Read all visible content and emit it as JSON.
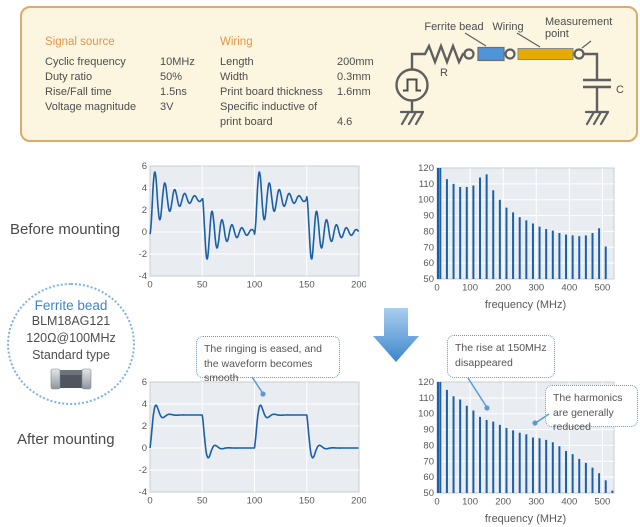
{
  "conditions_panel": {
    "signal_source": {
      "heading": "Signal source",
      "rows": [
        {
          "label": "Cyclic frequency",
          "value": "10MHz"
        },
        {
          "label": "Duty ratio",
          "value": "50%"
        },
        {
          "label": "Rise/Fall time",
          "value": "1.5ns"
        },
        {
          "label": "Voltage magnitude",
          "value": "3V"
        }
      ]
    },
    "wiring": {
      "heading": "Wiring",
      "rows": [
        {
          "label": "Length",
          "value": "200mm"
        },
        {
          "label": "Width",
          "value": "0.3mm"
        },
        {
          "label": "Print board thickness",
          "value": "1.6mm"
        },
        {
          "label": "Specific inductive of print board",
          "value": "4.6"
        }
      ]
    },
    "circuit": {
      "labels": {
        "ferrite_bead": "Ferrite bead",
        "wiring": "Wiring",
        "measurement_line1": "Measurement",
        "measurement_line2": "point",
        "resistor": "R",
        "capacitor": "C"
      }
    }
  },
  "sections": {
    "before_label": "Before mounting",
    "after_label": "After mounting"
  },
  "ferrite_bead_badge": {
    "title": "Ferrite bead",
    "part_number": "BLM18AG121",
    "impedance": "120Ω@100MHz",
    "type": "Standard type"
  },
  "callouts": {
    "waveform": "The ringing is eased, and the waveform becomes smooth",
    "spectrum_rise": "The rise at 150MHz disappeared",
    "spectrum_harmonics": "The harmonics are generally reduced"
  },
  "colors": {
    "series": "#1a5fa8",
    "plot_bg": "#e9edf1",
    "plot_border": "#c8cdd4",
    "grid": "#ffffff",
    "tick_text": "#595959",
    "panel_bg": "#fcf5df",
    "panel_border": "#dca96e",
    "heading_orange": "#e2964a",
    "callout_blue": "#5b9bd5",
    "badge_blue": "#3f84cc",
    "bead_fill": "#4e94d8",
    "wiring_fill": "#e5ab00",
    "arrow_light": "#aacef0",
    "arrow_dark": "#3e86cc"
  },
  "chart_data": [
    {
      "type": "line",
      "name": "before_mounting_waveform",
      "description": "10MHz square wave (0-3V) with strong ringing: overshoot to ~5.5 and undershoot to ~-2.5, slowly damped oscillation",
      "xlim": [
        0,
        200
      ],
      "ylim": [
        -4,
        6
      ],
      "xticks": [
        0,
        50,
        100,
        150,
        200
      ],
      "yticks": [
        -4,
        -2,
        0,
        2,
        4,
        6
      ],
      "xlabel": "",
      "ylabel": "",
      "waveform_model": {
        "period_ns": 100,
        "duty_pct": 50,
        "high_level": 3,
        "low_level": 0,
        "ring_amplitude": 3.2,
        "ring_decay_ns": 18,
        "ring_period_ns": 9.5
      }
    },
    {
      "type": "bar",
      "name": "before_mounting_spectrum",
      "xlabel": "frequency (MHz)",
      "xlim": [
        0,
        535
      ],
      "ylim": [
        50,
        120
      ],
      "xticks": [
        0,
        100,
        200,
        300,
        400,
        500
      ],
      "yticks": [
        50,
        60,
        70,
        80,
        90,
        100,
        110,
        120
      ],
      "frequencies": [
        10,
        30,
        50,
        70,
        90,
        110,
        130,
        150,
        170,
        190,
        210,
        230,
        250,
        270,
        290,
        310,
        330,
        350,
        370,
        390,
        410,
        430,
        450,
        470,
        490,
        510
      ],
      "values": [
        120,
        113,
        110,
        108,
        108,
        109,
        114,
        116,
        106,
        100,
        95,
        92,
        89,
        87,
        85,
        83,
        81.5,
        80.5,
        79,
        78,
        77.5,
        77,
        77.5,
        79,
        82,
        70.5
      ]
    },
    {
      "type": "line",
      "name": "after_mounting_waveform",
      "description": "Smoothed 10MHz square wave (0-3V): single small overshoot to ~4 and undershoot to ~-1, ringing eased",
      "xlim": [
        0,
        200
      ],
      "ylim": [
        -4,
        6
      ],
      "xticks": [
        0,
        50,
        100,
        150,
        200
      ],
      "yticks": [
        -4,
        -2,
        0,
        2,
        4,
        6
      ],
      "xlabel": "",
      "ylabel": "",
      "waveform_model": {
        "period_ns": 100,
        "duty_pct": 50,
        "high_level": 3,
        "low_level": 0,
        "ring_amplitude": 3.0,
        "ring_decay_ns": 5,
        "ring_period_ns": 13
      }
    },
    {
      "type": "bar",
      "name": "after_mounting_spectrum",
      "xlabel": "frequency (MHz)",
      "xlim": [
        0,
        535
      ],
      "ylim": [
        50,
        120
      ],
      "xticks": [
        0,
        100,
        200,
        300,
        400,
        500
      ],
      "yticks": [
        50,
        60,
        70,
        80,
        90,
        100,
        110,
        120
      ],
      "frequencies": [
        10,
        30,
        50,
        70,
        90,
        110,
        130,
        150,
        170,
        190,
        210,
        230,
        250,
        270,
        290,
        310,
        330,
        350,
        370,
        390,
        410,
        430,
        450,
        470,
        490,
        510,
        530
      ],
      "values": [
        120,
        115,
        111,
        109,
        105,
        102,
        98,
        96,
        95,
        93,
        91,
        89.5,
        88,
        87,
        85,
        84.5,
        83.5,
        82,
        79.5,
        76.5,
        74.5,
        71.5,
        69,
        66,
        62.5,
        58,
        51.5
      ]
    }
  ]
}
